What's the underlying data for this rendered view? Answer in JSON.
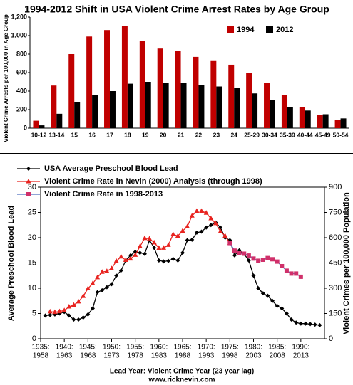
{
  "chart_data": [
    {
      "type": "bar",
      "title": "1994-2012 Shift in USA Violent Crime Arrest Rates by Age Group",
      "y_label": "Violent Crime Arrests per 100,000 in Age Group",
      "categories": [
        "10-12",
        "13-14",
        "15",
        "16",
        "17",
        "18",
        "19",
        "20",
        "21",
        "22",
        "23",
        "24",
        "25-29",
        "30-34",
        "35-39",
        "40-44",
        "45-49",
        "50-54"
      ],
      "series": [
        {
          "name": "1994",
          "color": "#c00000",
          "values": [
            80,
            460,
            800,
            990,
            1060,
            1100,
            940,
            860,
            835,
            770,
            725,
            685,
            600,
            490,
            360,
            230,
            140,
            90
          ]
        },
        {
          "name": "2012",
          "color": "#000000",
          "values": [
            30,
            155,
            280,
            355,
            400,
            480,
            500,
            485,
            490,
            465,
            450,
            435,
            375,
            305,
            225,
            190,
            150,
            105
          ]
        }
      ],
      "ylim": [
        0,
        1200
      ],
      "yticks": [
        0,
        200,
        400,
        600,
        800,
        {
          "value": 1000,
          "label": "1,000"
        },
        {
          "value": 1200,
          "label": "1,200"
        }
      ],
      "grid": false,
      "legend": "top-right"
    },
    {
      "type": "line",
      "x_label": "Lead Year: Violent Crime Year (23 year lag)",
      "annotation": "www.ricknevin.com",
      "y_label": "Average Preschool Blood Lead",
      "y2_label": "Violent Crimes per 100,000 Population",
      "xlim": [
        1935,
        1995
      ],
      "xticks": [
        {
          "value": 1935,
          "label": "1935:"
        },
        {
          "value": 1940,
          "label": "1940:"
        },
        {
          "value": 1945,
          "label": "1945:"
        },
        {
          "value": 1950,
          "label": "1950:"
        },
        {
          "value": 1955,
          "label": "1955:"
        },
        {
          "value": 1960,
          "label": "1960:"
        },
        {
          "value": 1965,
          "label": "1965:"
        },
        {
          "value": 1970,
          "label": "1970:"
        },
        {
          "value": 1975,
          "label": "1975:"
        },
        {
          "value": 1980,
          "label": "1980:"
        },
        {
          "value": 1985,
          "label": "1985:"
        },
        {
          "value": 1990,
          "label": "1990:"
        }
      ],
      "xtick_sublabels": [
        "1958",
        "1963",
        "1968",
        "1973",
        "1978",
        "1983",
        "1988",
        "1993",
        "1998",
        "2003",
        "2008",
        "2013"
      ],
      "ylim": [
        0,
        30
      ],
      "yticks": [
        0,
        5,
        10,
        15,
        20,
        25,
        30
      ],
      "y2lim": [
        0,
        900
      ],
      "y2ticks": [
        0,
        150,
        300,
        450,
        600,
        750,
        900
      ],
      "legend": "top-left",
      "series": [
        {
          "name": "USA Average Preschool Blood Lead",
          "color": "#000000",
          "marker": "diamond",
          "x": [
            1936,
            1937,
            1938,
            1939,
            1940,
            1941,
            1942,
            1943,
            1944,
            1945,
            1946,
            1947,
            1948,
            1949,
            1950,
            1951,
            1952,
            1953,
            1954,
            1955,
            1956,
            1957,
            1958,
            1959,
            1960,
            1961,
            1962,
            1963,
            1964,
            1965,
            1966,
            1967,
            1968,
            1969,
            1970,
            1971,
            1972,
            1973,
            1974,
            1975,
            1976,
            1977,
            1978,
            1979,
            1980,
            1981,
            1982,
            1983,
            1984,
            1985,
            1986,
            1987,
            1988,
            1989,
            1990,
            1991,
            1992,
            1993,
            1994
          ],
          "values": [
            4.6,
            4.7,
            4.8,
            5.0,
            5.3,
            4.6,
            3.8,
            3.8,
            4.2,
            4.8,
            6.0,
            9.2,
            9.6,
            10.2,
            10.8,
            12.5,
            13.5,
            15.5,
            16.5,
            17.2,
            17.0,
            16.8,
            19.5,
            18.0,
            15.5,
            15.3,
            15.4,
            15.8,
            15.5,
            17.0,
            19.5,
            19.6,
            21.0,
            21.2,
            22.0,
            22.5,
            23.0,
            22.0,
            20.0,
            19.5,
            16.5,
            17.5,
            16.8,
            15.5,
            12.5,
            10.0,
            9.0,
            8.5,
            7.5,
            6.5,
            6.0,
            5.0,
            3.8,
            3.2,
            3.0,
            3.0,
            2.9,
            2.8,
            2.7
          ]
        },
        {
          "name": "Violent Crime Rate in Nevin (2000) Analysis (through 1998)",
          "color": "#e8231f",
          "marker": "triangle",
          "axis": "y2",
          "x": [
            1937,
            1938,
            1939,
            1940,
            1941,
            1942,
            1943,
            1944,
            1945,
            1946,
            1947,
            1948,
            1949,
            1950,
            1951,
            1952,
            1953,
            1954,
            1955,
            1956,
            1957,
            1958,
            1959,
            1960,
            1961,
            1962,
            1963,
            1964,
            1965,
            1966,
            1967,
            1968,
            1969,
            1970,
            1971,
            1972,
            1973,
            1974,
            1975
          ],
          "values": [
            161,
            158,
            162,
            168,
            190,
            200,
            220,
            253,
            298,
            328,
            364,
            396,
            401,
            417,
            461,
            487,
            467,
            475,
            497,
            548,
            597,
            594,
            571,
            538,
            539,
            556,
            620,
            610,
            640,
            666,
            730,
            758,
            758,
            747,
            714,
            685,
            637,
            611,
            568
          ]
        },
        {
          "name": "Violent Crime Rate in 1998-2013",
          "color": "#4f6fbf",
          "marker_color": "#d0306a",
          "marker": "square",
          "axis": "y2",
          "x": [
            1975,
            1976,
            1977,
            1978,
            1979,
            1980,
            1981,
            1982,
            1983,
            1984,
            1985,
            1986,
            1987,
            1988,
            1989,
            1990
          ],
          "values": [
            568,
            523,
            507,
            505,
            494,
            476,
            463,
            469,
            479,
            472,
            458,
            431,
            404,
            387,
            387,
            368
          ]
        }
      ]
    }
  ]
}
